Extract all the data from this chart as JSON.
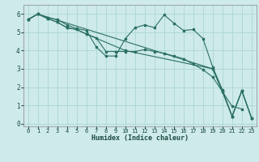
{
  "xlabel": "Humidex (Indice chaleur)",
  "bg_color": "#ceeaea",
  "grid_color": "#b0d8d8",
  "line_color": "#2a7060",
  "xlim": [
    -0.5,
    23.5
  ],
  "ylim": [
    -0.15,
    6.5
  ],
  "xticks": [
    0,
    1,
    2,
    3,
    4,
    5,
    6,
    7,
    8,
    9,
    10,
    11,
    12,
    13,
    14,
    15,
    16,
    17,
    18,
    19,
    20,
    21,
    22,
    23
  ],
  "yticks": [
    0,
    1,
    2,
    3,
    4,
    5,
    6
  ],
  "line1_x": [
    0,
    1,
    2,
    3,
    4,
    5,
    6,
    7,
    8,
    9,
    10,
    11,
    12,
    13,
    14,
    15,
    16,
    17,
    18,
    19,
    20,
    21,
    22,
    23
  ],
  "line1_y": [
    5.7,
    6.0,
    5.8,
    5.7,
    5.4,
    5.2,
    5.1,
    4.2,
    3.7,
    3.7,
    4.65,
    5.25,
    5.4,
    5.25,
    5.95,
    5.5,
    5.1,
    5.15,
    4.65,
    3.1,
    1.85,
    0.4,
    1.8,
    0.3
  ],
  "line2_x": [
    0,
    1,
    2,
    3,
    4,
    5,
    6,
    7,
    8,
    9,
    10,
    11,
    12,
    13,
    14,
    15,
    16,
    17,
    18,
    19,
    20,
    21,
    22
  ],
  "line2_y": [
    5.7,
    6.0,
    5.75,
    5.55,
    5.25,
    5.15,
    4.9,
    4.7,
    3.95,
    3.95,
    3.95,
    3.95,
    4.05,
    3.95,
    3.85,
    3.7,
    3.55,
    3.25,
    2.95,
    2.55,
    1.75,
    0.95,
    0.8
  ],
  "line3_x": [
    0,
    1,
    2,
    3,
    4,
    5,
    6,
    10,
    19,
    20,
    21,
    22,
    23
  ],
  "line3_y": [
    5.7,
    6.0,
    5.75,
    5.55,
    5.25,
    5.15,
    4.9,
    4.0,
    3.0,
    1.75,
    0.4,
    1.8,
    0.3
  ],
  "line4_x": [
    0,
    1,
    19,
    20,
    21,
    22,
    23
  ],
  "line4_y": [
    5.7,
    6.0,
    3.0,
    1.75,
    0.4,
    1.8,
    0.3
  ]
}
